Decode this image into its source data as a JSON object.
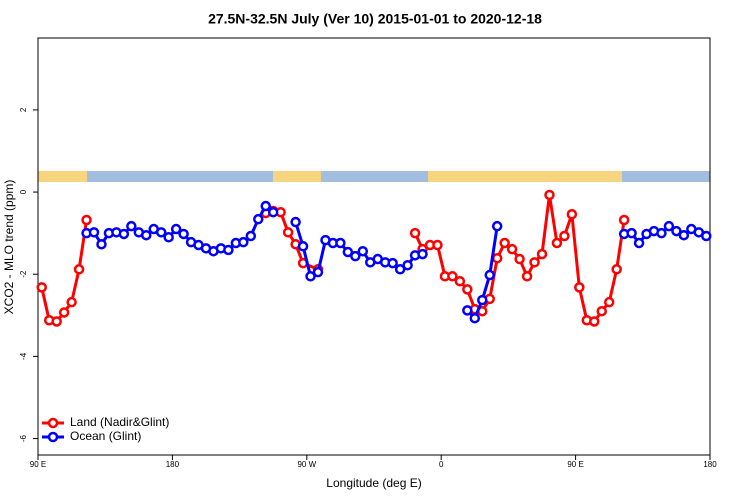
{
  "chart_data": {
    "type": "line",
    "title": "27.5N-32.5N July (Ver 10)   2015-01-01 to 2020-12-18",
    "x_label": "Longitude (deg E)",
    "y_label": "XCO2 - MLO trend (ppm)",
    "xlim": [
      90,
      540
    ],
    "ylim": [
      -6.4,
      3.75
    ],
    "xticks": [
      {
        "value": 90,
        "label": "90 E"
      },
      {
        "value": 180,
        "label": "180"
      },
      {
        "value": 270,
        "label": "90 W"
      },
      {
        "value": 360,
        "label": "0"
      },
      {
        "value": 450,
        "label": "90 E"
      },
      {
        "value": 540,
        "label": "180"
      }
    ],
    "yticks": [
      -6,
      -4,
      -2,
      0,
      2
    ],
    "legend": "bottom-left",
    "series": [
      {
        "name": "Land (Nadir&Glint)",
        "color": "#ff0000",
        "x": [
          92.5,
          97.5,
          102.5,
          107.5,
          112.5,
          117.5,
          122.5,
          null,
          242.5,
          247.5,
          252.5,
          257.5,
          262.5,
          267.5,
          277.5,
          null,
          342.5,
          347.5,
          352.5,
          357.5,
          362.5,
          367.5,
          372.5,
          377.5,
          382.5,
          387.5,
          392.5,
          397.5,
          402.5,
          407.5,
          412.5,
          417.5,
          422.5,
          427.5,
          432.5,
          437.5,
          442.5,
          447.5,
          452.5,
          457.5,
          462.5,
          467.5,
          472.5,
          477.5,
          482.5
        ],
        "values": [
          -2.32,
          -3.12,
          -3.15,
          -2.93,
          -2.68,
          -1.88,
          -0.68,
          null,
          -0.51,
          -0.46,
          -0.49,
          -0.98,
          -1.27,
          -1.73,
          -1.88,
          null,
          -1.0,
          -1.39,
          -1.29,
          -1.29,
          -2.05,
          -2.05,
          -2.17,
          -2.37,
          -2.85,
          -2.9,
          -2.6,
          -1.61,
          -1.24,
          -1.39,
          -1.63,
          -2.05,
          -1.71,
          -1.51,
          -0.07,
          -1.24,
          -1.07,
          -0.54,
          -2.32,
          -3.12,
          -3.15,
          -2.9,
          -2.68,
          -1.88,
          -0.68
        ]
      },
      {
        "name": "Ocean (Glint)",
        "color": "#0000ff",
        "x": [
          122.5,
          127.5,
          132.5,
          137.5,
          142.5,
          147.5,
          152.5,
          157.5,
          162.5,
          167.5,
          172.5,
          177.5,
          182.5,
          187.5,
          192.5,
          197.5,
          202.5,
          207.5,
          212.5,
          217.5,
          222.5,
          227.5,
          232.5,
          237.5,
          242.5,
          247.5,
          null,
          262.5,
          267.5,
          272.5,
          277.5,
          282.5,
          287.5,
          292.5,
          297.5,
          302.5,
          307.5,
          312.5,
          317.5,
          322.5,
          327.5,
          332.5,
          337.5,
          342.5,
          347.5,
          null,
          377.5,
          382.5,
          387.5,
          392.5,
          397.5,
          null,
          482.5,
          487.5,
          492.5,
          497.5,
          502.5,
          507.5,
          512.5,
          517.5,
          522.5,
          527.5,
          532.5,
          537.5
        ],
        "values": [
          -1.0,
          -0.98,
          -1.27,
          -1.0,
          -0.98,
          -1.02,
          -0.83,
          -0.98,
          -1.05,
          -0.9,
          -0.98,
          -1.1,
          -0.9,
          -1.02,
          -1.22,
          -1.29,
          -1.37,
          -1.44,
          -1.37,
          -1.41,
          -1.24,
          -1.22,
          -1.07,
          -0.66,
          -0.34,
          -0.49,
          null,
          -0.73,
          -1.32,
          -2.05,
          -1.95,
          -1.17,
          -1.24,
          -1.24,
          -1.46,
          -1.56,
          -1.44,
          -1.71,
          -1.63,
          -1.71,
          -1.73,
          -1.88,
          -1.78,
          -1.54,
          -1.51,
          null,
          -2.88,
          -3.07,
          -2.63,
          -2.02,
          -0.83,
          null,
          -1.02,
          -1.0,
          -1.24,
          -1.02,
          -0.95,
          -1.0,
          -0.83,
          -0.95,
          -1.05,
          -0.9,
          -0.98,
          -1.07
        ]
      }
    ]
  }
}
